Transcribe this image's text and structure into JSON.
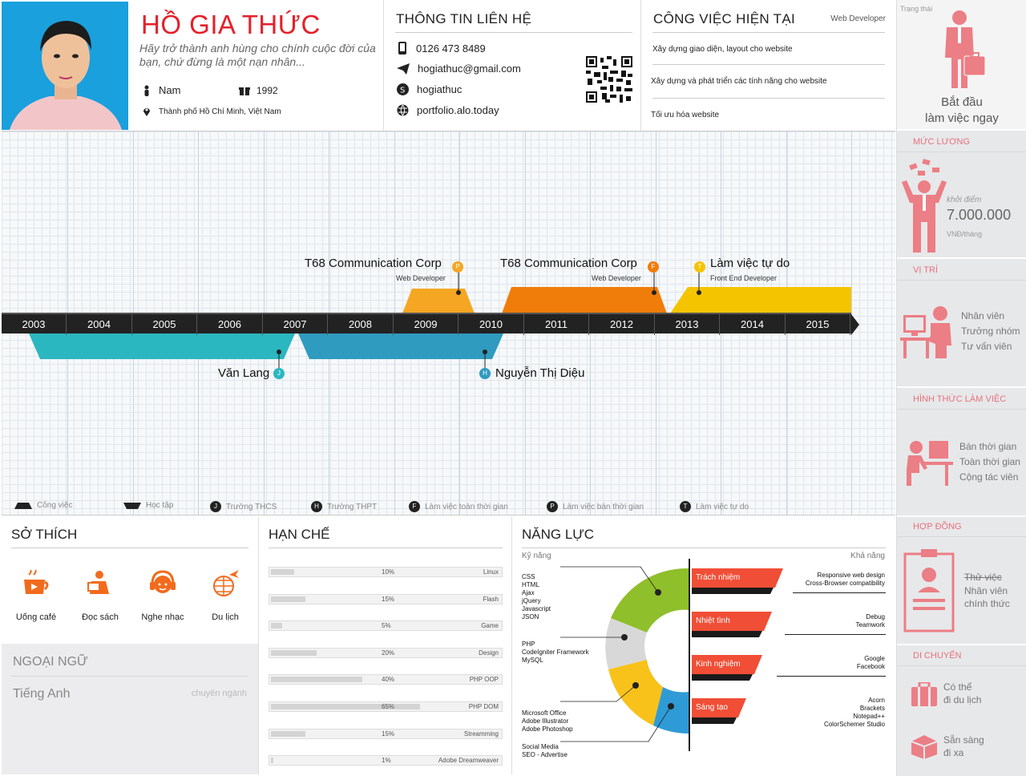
{
  "profile": {
    "name": "HỒ GIA THỨC",
    "quote": "Hãy trở thành anh hùng cho chính cuộc đời của bạn, chứ đừng là một nạn nhân...",
    "gender": "Nam",
    "birth_year": "1992",
    "location": "Thành phố Hồ Chí Minh, Việt Nam"
  },
  "contact": {
    "title": "THÔNG TIN LIÊN HỆ",
    "phone": "0126 473 8489",
    "email": "hogiathuc@gmail.com",
    "skype": "hogiathuc",
    "website": "portfolio.alo.today"
  },
  "job": {
    "title": "CÔNG VIỆC HIỆN TẠI",
    "role": "Web Developer",
    "tasks": [
      "Xây dựng giao diện, layout cho website",
      "Xây dựng và phát triển các tính năng cho website",
      "Tối ưu hóa website"
    ]
  },
  "timeline": {
    "years": [
      "2003",
      "2004",
      "2005",
      "2006",
      "2007",
      "2008",
      "2009",
      "2010",
      "2011",
      "2012",
      "2013",
      "2014",
      "2015"
    ],
    "work": [
      {
        "company": "T68 Communication Corp",
        "role": "Web Developer",
        "badge": "P",
        "color": "#f5a623"
      },
      {
        "company": "T68 Communication Corp",
        "role": "Web Developer",
        "badge": "F",
        "color": "#f07d0a"
      },
      {
        "company": "Làm việc tự do",
        "role": "Front End Developer",
        "badge": "T",
        "color": "#f5c400"
      }
    ],
    "study": [
      {
        "school": "Văn Lang",
        "badge": "J",
        "color": "#2bb7c0"
      },
      {
        "school": "Nguyễn Thị Diệu",
        "badge": "H",
        "color": "#2f9bbf"
      }
    ],
    "legend": [
      "Công việc",
      "Học tập",
      "Trường THCS",
      "Trường THPT",
      "Làm việc toàn thời gian",
      "Làm việc bán thời gian",
      "Làm việc tự do"
    ],
    "legend_badges": [
      "J",
      "H",
      "F",
      "P",
      "T"
    ]
  },
  "sidebar": {
    "status_label": "Trạng thái",
    "status_value_1": "Bắt đầu",
    "status_value_2": "làm việc ngay",
    "salary_head": "MỨC LƯƠNG",
    "salary_from": "khởi điểm",
    "salary_value": "7.000.000",
    "salary_unit": "VNĐ/tháng",
    "position_head": "VỊ TRÍ",
    "positions": [
      "Nhân viên",
      "Trưởng nhóm",
      "Tư vấn viên"
    ],
    "worktype_head": "HÌNH THỨC LÀM VIỆC",
    "worktypes": [
      "Bán thời gian",
      "Toàn thời gian",
      "Cộng tác viên"
    ],
    "contract_head": "HỢP ĐỒNG",
    "contract_struck": "Thử việc",
    "contracts": [
      "Nhân viên",
      "chính thức"
    ],
    "move_head": "DI CHUYỂN",
    "move_1a": "Có thể",
    "move_1b": "đi du lịch",
    "move_2a": "Sẵn sàng",
    "move_2b": "đi xa"
  },
  "hobbies": {
    "title": "SỞ THÍCH",
    "items": [
      "Uống café",
      "Đọc sách",
      "Nghe nhạc",
      "Du lịch"
    ]
  },
  "languages": {
    "title": "NGOẠI NGỮ",
    "name": "Tiếng Anh",
    "level": "chuyên ngành"
  },
  "limits": {
    "title": "HẠN CHẾ",
    "items": [
      {
        "name": "Linux",
        "pct": "10%",
        "value": 10
      },
      {
        "name": "Flash",
        "pct": "15%",
        "value": 15
      },
      {
        "name": "Game",
        "pct": "5%",
        "value": 5
      },
      {
        "name": "Design",
        "pct": "20%",
        "value": 20
      },
      {
        "name": "PHP OOP",
        "pct": "40%",
        "value": 40
      },
      {
        "name": "PHP DOM",
        "pct": "65%",
        "value": 65
      },
      {
        "name": "Streamming",
        "pct": "15%",
        "value": 15
      },
      {
        "name": "Adobe Dreamweaver",
        "pct": "1%",
        "value": 1
      }
    ]
  },
  "abilities": {
    "title": "NĂNG LỰC",
    "skills_label": "Kỹ năng",
    "capacity_label": "Khả năng",
    "skill_groups": [
      [
        "CSS",
        "HTML",
        "Ajax",
        "jQuery",
        "Javascript",
        "JSON"
      ],
      [
        "PHP",
        "CodeIgniter Framework",
        "MySQL"
      ],
      [
        "Microsoft Office",
        "Adobe Illustrator",
        "Adobe Photoshop"
      ],
      [
        "Social Media",
        "SEO - Advertise"
      ]
    ],
    "traits": [
      "Trách nhiệm",
      "Nhiệt tình",
      "Kinh nghiệm",
      "Sáng tạo"
    ],
    "capacities": [
      [
        "Responsive web design",
        "Cross-Browser compatibility"
      ],
      [
        "Debug",
        "Teamwork"
      ],
      [
        "Google",
        "Facebook"
      ],
      [
        "Acorn",
        "Brackets",
        "Notepad++",
        "ColorSchemer Studio"
      ]
    ]
  }
}
